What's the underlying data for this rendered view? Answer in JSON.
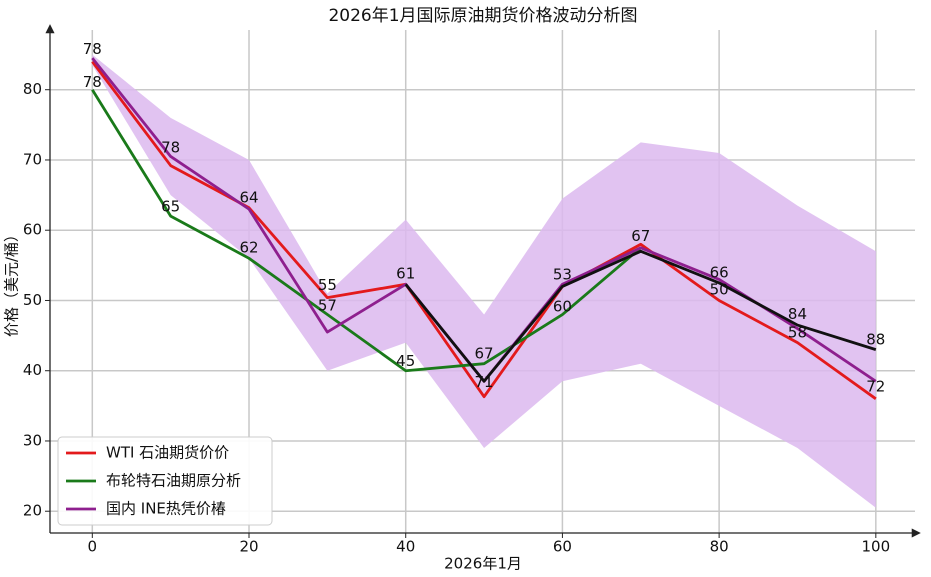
{
  "chart_data": {
    "type": "line",
    "title": "2026年1月国际原油期货价格波动分析图",
    "x_label": "2026年1月",
    "y_label": "价格（美元/桶）",
    "x": [
      0,
      10,
      20,
      30,
      40,
      50,
      60,
      70,
      80,
      90,
      100
    ],
    "xlim": [
      -5.4,
      105
    ],
    "xticks": [
      0,
      20,
      40,
      60,
      80,
      100
    ],
    "ylim": [
      16.9,
      88.5
    ],
    "yticks": [
      20,
      30,
      40,
      50,
      60,
      70,
      80
    ],
    "grid": true,
    "legend": "lower left",
    "band": {
      "color": "#dcb8ef",
      "upper": [
        85,
        76,
        70,
        51,
        61.5,
        48,
        64.5,
        72.5,
        71,
        63.5,
        57
      ],
      "lower": [
        83.5,
        65,
        56,
        40,
        44,
        29,
        38.5,
        41,
        35,
        29,
        20.5
      ]
    },
    "series": [
      {
        "name": "WTI 石油期货价价",
        "color": "#e31a1c",
        "values": [
          84,
          69.2,
          63.2,
          50.4,
          52.3,
          36.3,
          52,
          58,
          50,
          44,
          36
        ]
      },
      {
        "name": "布轮特石油期原分析",
        "color": "#1a7a1a",
        "values": [
          80,
          62,
          56,
          48,
          40,
          41,
          48,
          57.5,
          null,
          null,
          null
        ]
      },
      {
        "name": "国内 INE热凭价椿",
        "color": "#8e1f8e",
        "values": [
          84.5,
          70.5,
          63,
          45.5,
          52.3,
          38.5,
          52.3,
          57.5,
          53,
          46,
          38.5
        ]
      },
      {
        "color": "#111111",
        "values": [
          null,
          null,
          null,
          null,
          52.3,
          38.5,
          52,
          57,
          52.5,
          46.5,
          43
        ]
      }
    ],
    "annotations": [
      {
        "text": "78",
        "x": 0,
        "y": 85.7
      },
      {
        "text": "78",
        "x": 0,
        "y": 81
      },
      {
        "text": "78",
        "x": 10,
        "y": 71.7
      },
      {
        "text": "65",
        "x": 10,
        "y": 63.3
      },
      {
        "text": "64",
        "x": 20,
        "y": 64.6
      },
      {
        "text": "62",
        "x": 20,
        "y": 57.5
      },
      {
        "text": "55",
        "x": 30,
        "y": 52.1
      },
      {
        "text": "57",
        "x": 30,
        "y": 49.2
      },
      {
        "text": "61",
        "x": 40,
        "y": 53.8
      },
      {
        "text": "45",
        "x": 40,
        "y": 41.3
      },
      {
        "text": "67",
        "x": 50,
        "y": 42.4
      },
      {
        "text": "71",
        "x": 50,
        "y": 38.3
      },
      {
        "text": "53",
        "x": 60,
        "y": 53.6
      },
      {
        "text": "60",
        "x": 60,
        "y": 49.1
      },
      {
        "text": "67",
        "x": 70,
        "y": 59.1
      },
      {
        "text": "50",
        "x": 80,
        "y": 51.5
      },
      {
        "text": "66",
        "x": 80,
        "y": 53.9
      },
      {
        "text": "58",
        "x": 90,
        "y": 45.4
      },
      {
        "text": "84",
        "x": 90,
        "y": 48
      },
      {
        "text": "88",
        "x": 100,
        "y": 44.4
      },
      {
        "text": "72",
        "x": 100,
        "y": 37.7
      }
    ]
  }
}
